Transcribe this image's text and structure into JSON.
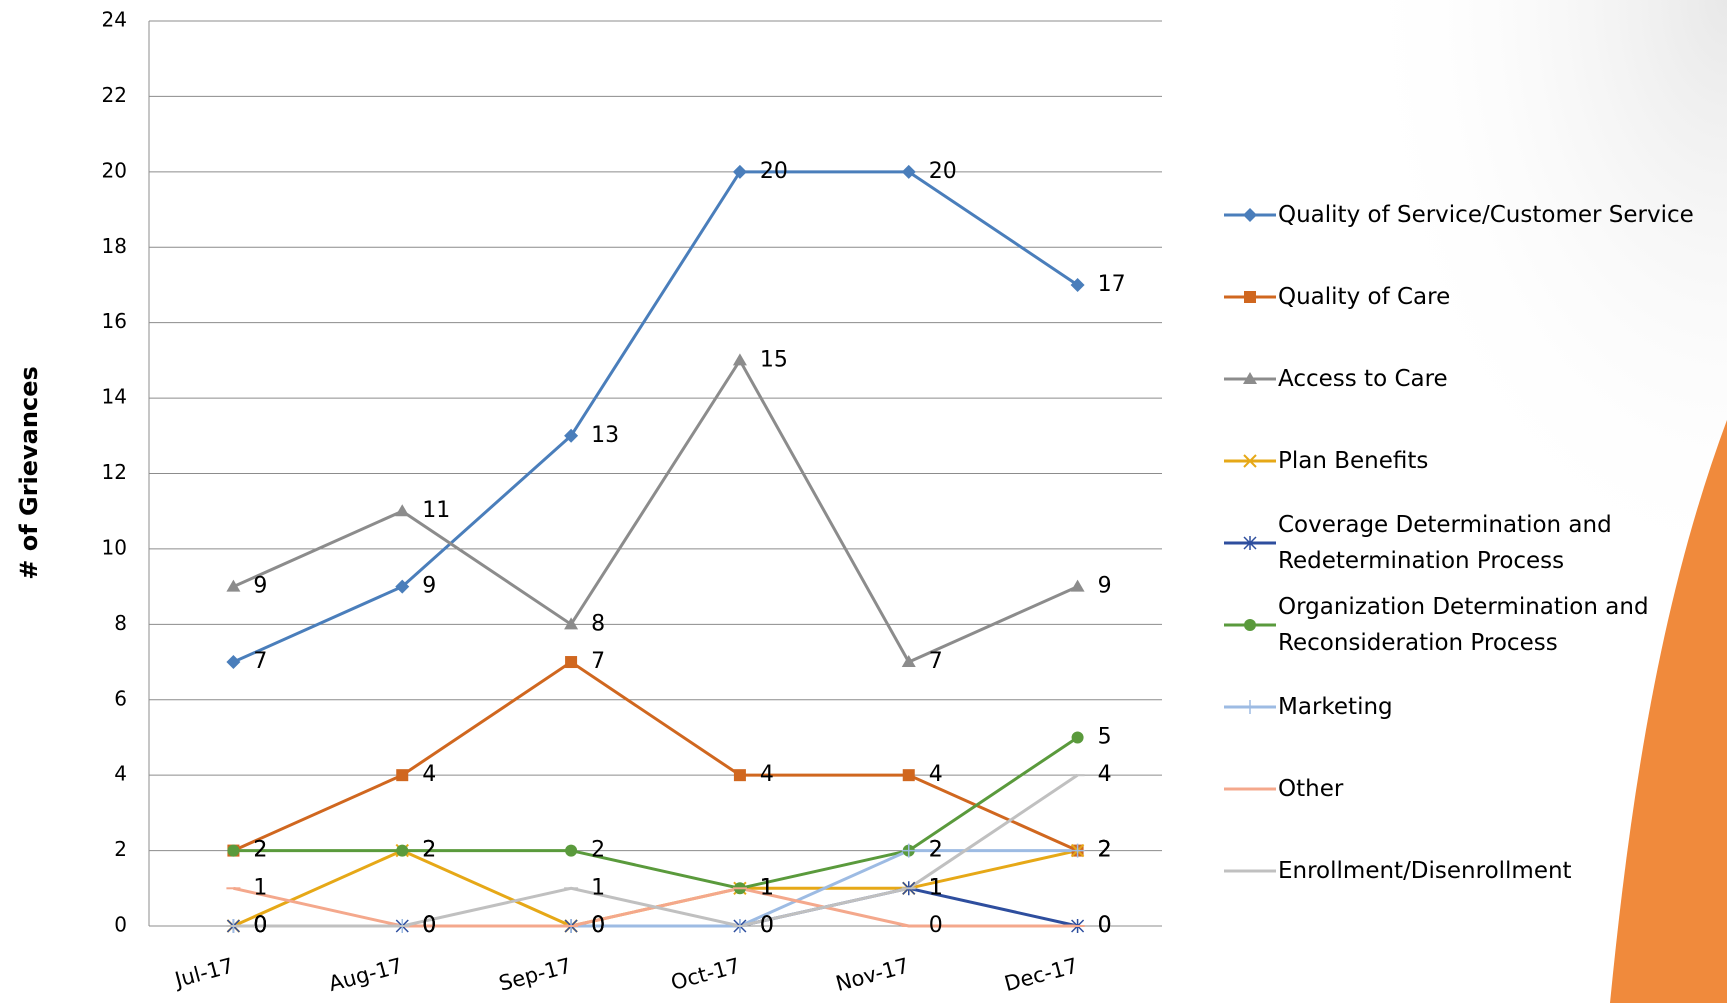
{
  "chart_data": {
    "type": "line",
    "y_label": "# of Grievances",
    "categories": [
      "Jul-17",
      "Aug-17",
      "Sep-17",
      "Oct-17",
      "Nov-17",
      "Dec-17"
    ],
    "ylim": [
      0,
      24
    ],
    "yticks": [
      0,
      2,
      4,
      6,
      8,
      10,
      12,
      14,
      16,
      18,
      20,
      22,
      24
    ],
    "grid": true,
    "legend": "right",
    "series": [
      {
        "name": "Quality of Service/Customer Service",
        "color": "#4a7ebb",
        "marker": "diamond",
        "values": [
          7,
          9,
          13,
          20,
          20,
          17
        ]
      },
      {
        "name": "Quality of Care",
        "color": "#d0671f",
        "marker": "square",
        "values": [
          2,
          4,
          7,
          4,
          4,
          2
        ]
      },
      {
        "name": "Access to Care",
        "color": "#8c8c8c",
        "marker": "triangle",
        "values": [
          9,
          11,
          8,
          15,
          7,
          9
        ]
      },
      {
        "name": "Plan Benefits",
        "color": "#e6a817",
        "marker": "x",
        "values": [
          0,
          2,
          0,
          1,
          1,
          2
        ]
      },
      {
        "name": "Coverage Determination and Redetermination Process",
        "color": "#2e4e9e",
        "marker": "star",
        "values": [
          0,
          0,
          0,
          0,
          1,
          0
        ]
      },
      {
        "name": "Organization Determination and Reconsideration Process",
        "color": "#5a9a3c",
        "marker": "circle",
        "values": [
          2,
          2,
          2,
          1,
          2,
          5
        ]
      },
      {
        "name": "Marketing",
        "color": "#9dbbe3",
        "marker": "plus",
        "values": [
          0,
          0,
          0,
          0,
          2,
          2
        ]
      },
      {
        "name": "Other",
        "color": "#f4a88c",
        "marker": "dash",
        "values": [
          1,
          0,
          0,
          1,
          0,
          0
        ]
      },
      {
        "name": "Enrollment/Disenrollment",
        "color": "#c0c0c0",
        "marker": "dash",
        "values": [
          0,
          0,
          1,
          0,
          1,
          4
        ]
      }
    ]
  }
}
